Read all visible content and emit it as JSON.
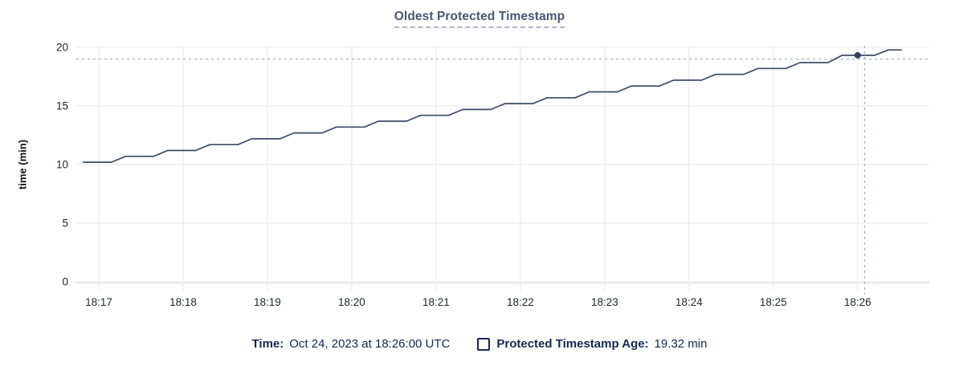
{
  "chart_data": {
    "type": "line",
    "title": "Oldest Protected Timestamp",
    "ylabel": "time (min)",
    "ylim": [
      0,
      20
    ],
    "y_ticks": [
      0,
      5,
      10,
      15,
      20
    ],
    "x_time_base": "18:16:00 UTC",
    "x_domain_s": [
      44,
      651
    ],
    "x_ticks": [
      {
        "offset_s": 60,
        "label": "18:17"
      },
      {
        "offset_s": 120,
        "label": "18:18"
      },
      {
        "offset_s": 180,
        "label": "18:19"
      },
      {
        "offset_s": 240,
        "label": "18:20"
      },
      {
        "offset_s": 300,
        "label": "18:21"
      },
      {
        "offset_s": 360,
        "label": "18:22"
      },
      {
        "offset_s": 420,
        "label": "18:23"
      },
      {
        "offset_s": 480,
        "label": "18:24"
      },
      {
        "offset_s": 540,
        "label": "18:25"
      },
      {
        "offset_s": 600,
        "label": "18:26"
      }
    ],
    "grid": true,
    "legend_position": "bottom",
    "series": [
      {
        "name": "Protected Timestamp Age",
        "unit": "min",
        "points_s_min": [
          [
            49,
            10.2
          ],
          [
            69,
            10.2
          ],
          [
            79,
            10.7
          ],
          [
            99,
            10.7
          ],
          [
            109,
            11.2
          ],
          [
            129,
            11.2
          ],
          [
            139,
            11.7
          ],
          [
            159,
            11.7
          ],
          [
            169,
            12.2
          ],
          [
            189,
            12.2
          ],
          [
            199,
            12.7
          ],
          [
            219,
            12.7
          ],
          [
            229,
            13.2
          ],
          [
            249,
            13.2
          ],
          [
            259,
            13.7
          ],
          [
            279,
            13.7
          ],
          [
            289,
            14.2
          ],
          [
            309,
            14.2
          ],
          [
            319,
            14.7
          ],
          [
            339,
            14.7
          ],
          [
            349,
            15.2
          ],
          [
            369,
            15.2
          ],
          [
            379,
            15.7
          ],
          [
            399,
            15.7
          ],
          [
            409,
            16.2
          ],
          [
            429,
            16.2
          ],
          [
            439,
            16.7
          ],
          [
            459,
            16.7
          ],
          [
            469,
            17.2
          ],
          [
            489,
            17.2
          ],
          [
            499,
            17.7
          ],
          [
            519,
            17.7
          ],
          [
            529,
            18.2
          ],
          [
            549,
            18.2
          ],
          [
            559,
            18.7
          ],
          [
            579,
            18.7
          ],
          [
            589,
            19.32
          ],
          [
            612,
            19.32
          ],
          [
            622,
            19.78
          ],
          [
            631,
            19.78
          ]
        ]
      }
    ],
    "hover": {
      "point": {
        "offset_s": 600,
        "value_min": 19.32
      },
      "crosshair": {
        "x_offset_s": 605,
        "y_value_min": 19.0
      }
    },
    "legend": {
      "time_label": "Time:",
      "time_value": "Oct 24, 2023 at 18:26:00 UTC",
      "series_label": "Protected Timestamp Age:",
      "series_value": "19.32 min"
    },
    "colors": {
      "line": "#3c4b64",
      "dot": "#33405a",
      "crosshair": "#9fb6bf",
      "grid": "#efefef",
      "axis_line": "#e3e3e3",
      "title": "#475872",
      "tick_text": "#21262e",
      "legend_text": "#15294e"
    }
  }
}
